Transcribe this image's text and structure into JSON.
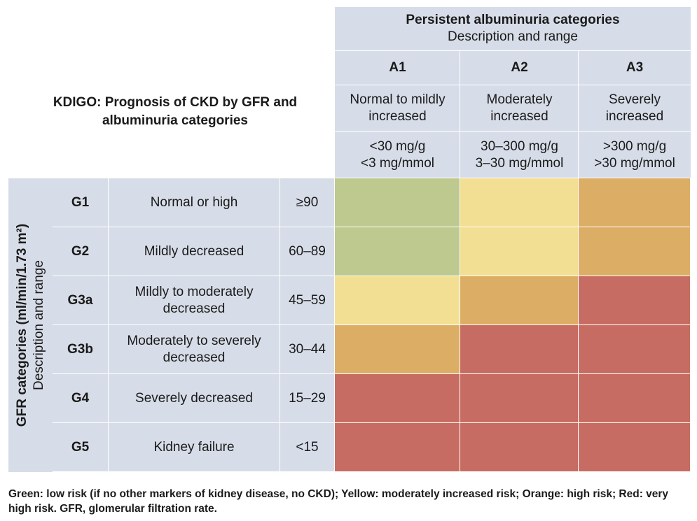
{
  "title": "KDIGO: Prognosis of CKD by GFR and albuminuria categories",
  "albuminuria": {
    "header_title": "Persistent albuminuria categories",
    "header_subtitle": "Description and range",
    "columns": [
      {
        "code": "A1",
        "description": "Normal to mildly increased",
        "range1": "<30 mg/g",
        "range2": "<3 mg/mmol"
      },
      {
        "code": "A2",
        "description": "Moderately increased",
        "range1": "30–300 mg/g",
        "range2": "3–30 mg/mmol"
      },
      {
        "code": "A3",
        "description": "Severely increased",
        "range1": ">300 mg/g",
        "range2": ">30 mg/mmol"
      }
    ]
  },
  "gfr": {
    "side_label": "GFR categories (ml/min/1.73 m²)",
    "side_sublabel": "Description and range",
    "rows": [
      {
        "code": "G1",
        "description": "Normal or high",
        "range": "≥90",
        "risk": [
          "green",
          "yellow",
          "orange"
        ]
      },
      {
        "code": "G2",
        "description": "Mildly decreased",
        "range": "60–89",
        "risk": [
          "green",
          "yellow",
          "orange"
        ]
      },
      {
        "code": "G3a",
        "description": "Mildly to moderately decreased",
        "range": "45–59",
        "risk": [
          "yellow",
          "orange",
          "red"
        ]
      },
      {
        "code": "G3b",
        "description": "Moderately to severely decreased",
        "range": "30–44",
        "risk": [
          "orange",
          "red",
          "red"
        ]
      },
      {
        "code": "G4",
        "description": "Severely decreased",
        "range": "15–29",
        "risk": [
          "red",
          "red",
          "red"
        ]
      },
      {
        "code": "G5",
        "description": "Kidney failure",
        "range": "<15",
        "risk": [
          "red",
          "red",
          "red"
        ]
      }
    ]
  },
  "colors": {
    "header": "#d7dde8",
    "green": "#bdc98f",
    "yellow": "#f3df93",
    "orange": "#dcae65",
    "red": "#c76c62"
  },
  "footnote": "Green: low risk (if no other markers of kidney disease, no CKD); Yellow: moderately increased risk; Orange: high risk; Red: very high risk. GFR, glomerular filtration rate."
}
